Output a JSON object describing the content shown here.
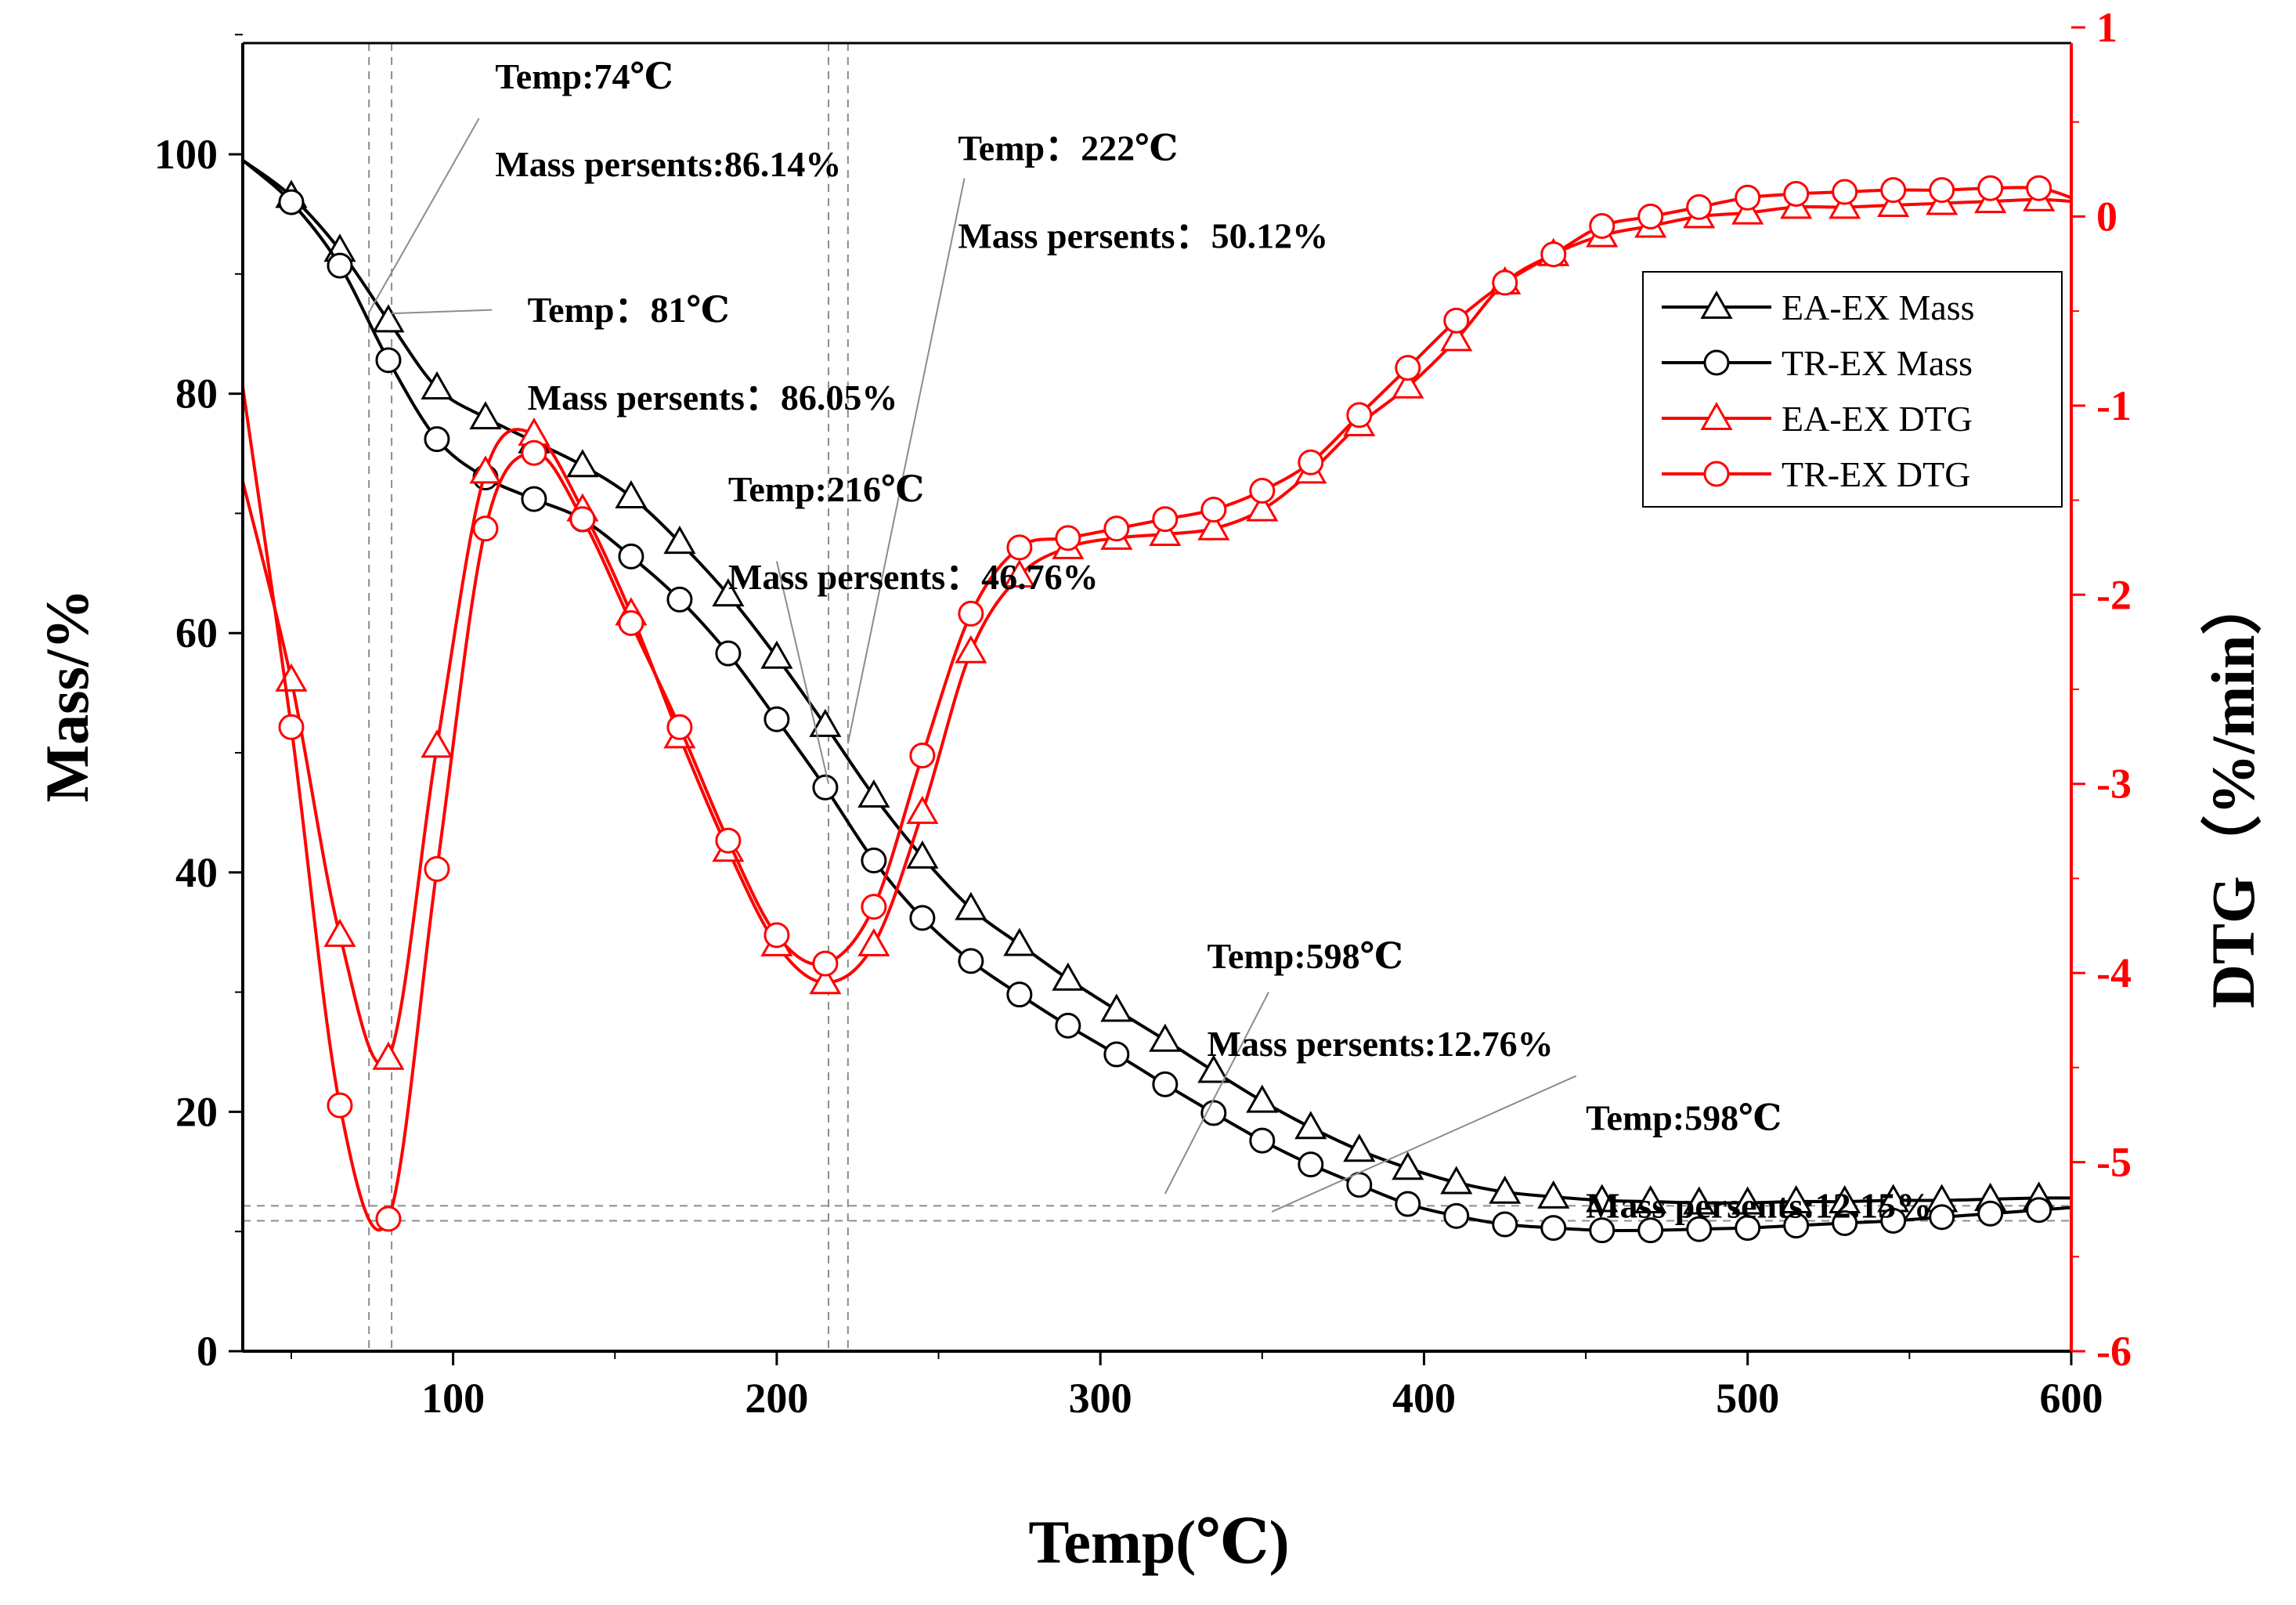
{
  "colors": {
    "mass": "#000000",
    "dtg": "#ff0000",
    "guide": "#8c8c8c"
  },
  "chart_data": {
    "type": "line",
    "xlabel": "Temp(℃)",
    "ylabel": "Mass/%",
    "y2label": "DTG（%/min）",
    "xlim": [
      35,
      600
    ],
    "ylim": [
      0,
      110
    ],
    "y2lim": [
      -6,
      1
    ],
    "xticks": [
      100,
      200,
      300,
      400,
      500,
      600
    ],
    "yticks": [
      0,
      20,
      40,
      60,
      80,
      100
    ],
    "y2ticks": [
      -6,
      -5,
      -4,
      -3,
      -2,
      -1,
      0,
      1
    ],
    "legend_position": "upper-right",
    "series": [
      {
        "name": "EA-EX Mass",
        "axis": "left",
        "marker": "triangle",
        "color": "#000000",
        "x": [
          35,
          50,
          65,
          80,
          95,
          110,
          125,
          140,
          155,
          170,
          185,
          200,
          215,
          230,
          245,
          260,
          275,
          290,
          305,
          320,
          335,
          350,
          365,
          380,
          395,
          410,
          425,
          440,
          455,
          470,
          485,
          500,
          515,
          530,
          545,
          560,
          575,
          590,
          600
        ],
        "y": [
          99.5,
          96.5,
          92,
          86.1,
          80.5,
          78,
          76,
          74,
          71.4,
          67.6,
          63.2,
          58,
          52.3,
          46.4,
          41.3,
          37,
          34,
          31.1,
          28.5,
          26,
          23.4,
          20.9,
          18.7,
          16.8,
          15.3,
          14.1,
          13.3,
          12.9,
          12.6,
          12.5,
          12.4,
          12.4,
          12.5,
          12.5,
          12.6,
          12.6,
          12.7,
          12.8,
          12.8
        ]
      },
      {
        "name": "TR-EX Mass",
        "axis": "left",
        "marker": "circle",
        "color": "#000000",
        "x": [
          35,
          50,
          65,
          80,
          95,
          110,
          125,
          140,
          155,
          170,
          185,
          200,
          215,
          230,
          245,
          260,
          275,
          290,
          305,
          320,
          335,
          350,
          365,
          380,
          395,
          410,
          425,
          440,
          455,
          470,
          485,
          500,
          515,
          530,
          545,
          560,
          575,
          590,
          600
        ],
        "y": [
          99.5,
          96,
          90.7,
          82.8,
          76.2,
          73,
          71.2,
          69.5,
          66.4,
          62.8,
          58.3,
          52.8,
          47.1,
          41,
          36.2,
          32.6,
          29.8,
          27.2,
          24.8,
          22.3,
          19.9,
          17.6,
          15.6,
          13.9,
          12.3,
          11.3,
          10.6,
          10.3,
          10.1,
          10.1,
          10.2,
          10.3,
          10.5,
          10.7,
          10.9,
          11.2,
          11.5,
          11.8,
          12
        ]
      },
      {
        "name": "EA-EX DTG",
        "axis": "right",
        "marker": "triangle",
        "color": "#ff0000",
        "x": [
          35,
          50,
          65,
          80,
          95,
          110,
          125,
          140,
          155,
          170,
          185,
          200,
          215,
          230,
          245,
          260,
          275,
          290,
          305,
          320,
          335,
          350,
          365,
          380,
          395,
          410,
          425,
          440,
          455,
          470,
          485,
          500,
          515,
          530,
          545,
          560,
          575,
          590,
          600
        ],
        "y": [
          -1.4,
          -2.45,
          -3.8,
          -4.45,
          -2.8,
          -1.35,
          -1.15,
          -1.55,
          -2.1,
          -2.75,
          -3.35,
          -3.85,
          -4.05,
          -3.85,
          -3.15,
          -2.3,
          -1.9,
          -1.75,
          -1.7,
          -1.68,
          -1.65,
          -1.55,
          -1.35,
          -1.1,
          -0.9,
          -0.65,
          -0.35,
          -0.2,
          -0.1,
          -0.05,
          0,
          0.02,
          0.05,
          0.05,
          0.06,
          0.07,
          0.08,
          0.09,
          0.08
        ]
      },
      {
        "name": "TR-EX DTG",
        "axis": "right",
        "marker": "circle",
        "color": "#ff0000",
        "x": [
          35,
          50,
          65,
          80,
          95,
          110,
          125,
          140,
          155,
          170,
          185,
          200,
          215,
          230,
          245,
          260,
          275,
          290,
          305,
          320,
          335,
          350,
          365,
          380,
          395,
          410,
          425,
          440,
          455,
          470,
          485,
          500,
          515,
          530,
          545,
          560,
          575,
          590,
          600
        ],
        "y": [
          -0.9,
          -2.7,
          -4.7,
          -5.3,
          -3.45,
          -1.65,
          -1.25,
          -1.6,
          -2.15,
          -2.7,
          -3.3,
          -3.8,
          -3.95,
          -3.65,
          -2.85,
          -2.1,
          -1.75,
          -1.7,
          -1.65,
          -1.6,
          -1.55,
          -1.45,
          -1.3,
          -1.05,
          -0.8,
          -0.55,
          -0.35,
          -0.2,
          -0.05,
          0,
          0.05,
          0.1,
          0.12,
          0.13,
          0.14,
          0.14,
          0.15,
          0.15,
          0.1
        ]
      }
    ],
    "guide_lines": {
      "vertical_x": [
        74,
        81,
        216,
        222
      ],
      "horizontal_y": [
        12.15,
        10.9
      ]
    },
    "annotations": [
      {
        "temp": "Temp:74℃",
        "mass": "Mass persents:86.14%",
        "tx": 74,
        "ty": 86.14,
        "lx": 113,
        "ly": 105.5,
        "line_x": 108,
        "line_y": 103
      },
      {
        "temp": "Temp：222℃",
        "mass": "Mass persents：50.12%",
        "tx": 222,
        "ty": 50.12,
        "lx": 256,
        "ly": 99.5,
        "line_x": 258,
        "line_y": 98
      },
      {
        "temp": "Temp：81℃",
        "mass": "Mass persents：86.05%",
        "tx": 81,
        "ty": 86.05,
        "lx": 123,
        "ly": 86,
        "line_x": 112,
        "line_y": 87
      },
      {
        "temp": "Temp:216℃",
        "mass": "Mass persents：46.76%",
        "tx": 216,
        "ty": 46.76,
        "lx": 185,
        "ly": 71,
        "line_x": 200,
        "line_y": 66
      },
      {
        "temp": "Temp:598℃",
        "mass": "Mass persents:12.76%",
        "tx": 320,
        "ty": 12.5,
        "lx": 333,
        "ly": 32,
        "line_x": 352,
        "line_y": 30
      },
      {
        "temp": "Temp:598℃",
        "mass": "Mass persents:12.15%",
        "tx": 353,
        "ty": 11,
        "lx": 450,
        "ly": 18.5,
        "line_x": 447,
        "line_y": 23
      }
    ]
  }
}
